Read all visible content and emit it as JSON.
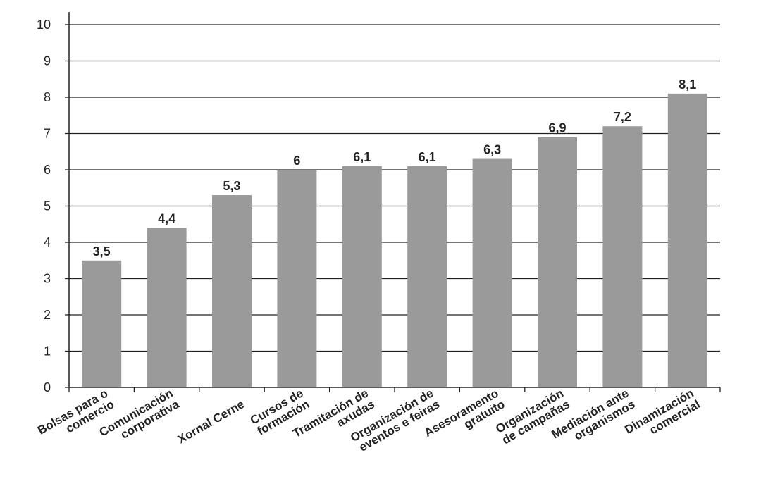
{
  "chart_data": {
    "type": "bar",
    "title": "",
    "xlabel": "",
    "ylabel": "",
    "ylim": [
      0,
      10
    ],
    "yticks": [
      0,
      1,
      2,
      3,
      4,
      5,
      6,
      7,
      8,
      9,
      10
    ],
    "grid": true,
    "bar_color": "#9a9a9a",
    "categories": [
      [
        "Bolsas para o",
        "comercio"
      ],
      [
        "Comunicación",
        "corporativa"
      ],
      [
        "Xornal Cerne"
      ],
      [
        "Cursos de",
        "formación"
      ],
      [
        "Tramitación de",
        "axudas"
      ],
      [
        "Organización de",
        "eventos  e feiras"
      ],
      [
        "Asesoramento",
        "gratuito"
      ],
      [
        "Organización",
        "de campañas"
      ],
      [
        "Mediación ante",
        "organismos"
      ],
      [
        "Dinamización",
        "comercial"
      ]
    ],
    "values": [
      3.5,
      4.4,
      5.3,
      6,
      6.1,
      6.1,
      6.3,
      6.9,
      7.2,
      8.1
    ],
    "data_labels": [
      "3,5",
      "4,4",
      "5,3",
      "6",
      "6,1",
      "6,1",
      "6,3",
      "6,9",
      "7,2",
      "8,1"
    ]
  }
}
